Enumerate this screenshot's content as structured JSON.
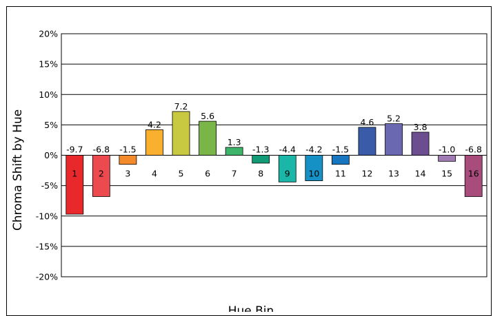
{
  "chart_data": {
    "type": "bar",
    "title": "",
    "xlabel": "Hue Bin",
    "ylabel": "Chroma Shift by Hue",
    "ylim": [
      -20,
      20
    ],
    "y_ticks": [
      20,
      15,
      10,
      5,
      0,
      -5,
      -10,
      -15,
      -20
    ],
    "y_tick_labels": [
      "20%",
      "15%",
      "10%",
      "5%",
      "0%",
      "-5%",
      "-10%",
      "-15%",
      "-20%"
    ],
    "grid": true,
    "legend": "none",
    "categories": [
      "1",
      "2",
      "3",
      "4",
      "5",
      "6",
      "7",
      "8",
      "9",
      "10",
      "11",
      "12",
      "13",
      "14",
      "15",
      "16"
    ],
    "values": [
      -9.7,
      -6.8,
      -1.5,
      4.2,
      7.2,
      5.6,
      1.3,
      -1.3,
      -4.4,
      -4.2,
      -1.5,
      4.6,
      5.2,
      3.8,
      -1.0,
      -6.8
    ],
    "data_labels": [
      "-9.7",
      "-6.8",
      "-1.5",
      "4.2",
      "7.2",
      "5.6",
      "1.3",
      "-1.3",
      "-4.4",
      "-4.2",
      "-1.5",
      "4.6",
      "5.2",
      "3.8",
      "-1.0",
      "-6.8"
    ],
    "colors": [
      "#e8282b",
      "#ec4a4f",
      "#f48a2c",
      "#f8b02e",
      "#c9c941",
      "#7ab547",
      "#3eb36a",
      "#139a77",
      "#1ab6a8",
      "#1691c6",
      "#1876c0",
      "#3a5ca8",
      "#6a68b0",
      "#6c4d8f",
      "#a17bb4",
      "#a84c7c"
    ],
    "axis_color": "#000000",
    "grid_color": "#000000"
  }
}
